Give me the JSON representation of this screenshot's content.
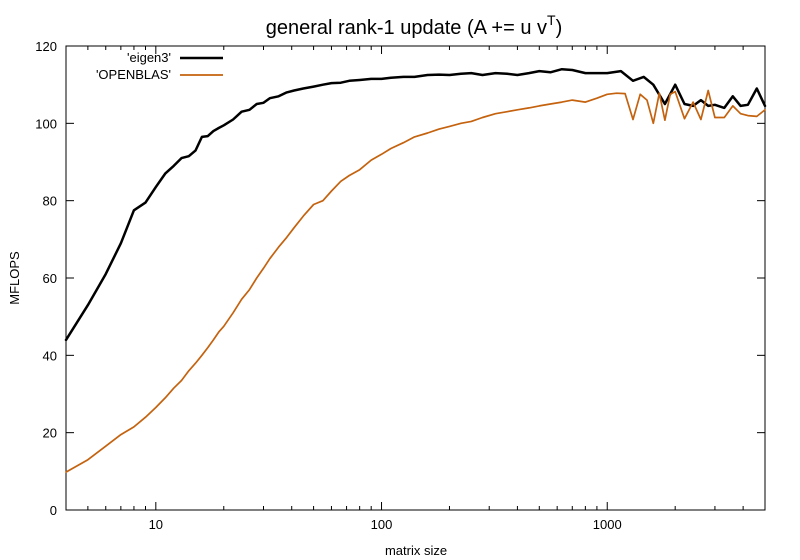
{
  "chart_data": {
    "type": "line",
    "title": "general rank-1 update (A += u v",
    "title_sup": "T",
    "title_close": ")",
    "xlabel": "matrix size",
    "ylabel": "MFLOPS",
    "x_scale": "log",
    "xlim": [
      4,
      5000
    ],
    "ylim": [
      0,
      120
    ],
    "xticks": [
      10,
      100,
      1000
    ],
    "yticks": [
      0,
      20,
      40,
      60,
      80,
      100,
      120
    ],
    "grid": false,
    "legend_position": "top-left",
    "series": [
      {
        "name": "'eigen3'",
        "color": "#000000",
        "x": [
          4,
          5,
          6,
          7,
          8,
          9,
          10,
          11,
          12,
          13,
          14,
          15,
          16,
          17,
          18,
          19,
          20,
          22,
          24,
          26,
          28,
          30,
          32,
          35,
          38,
          41,
          45,
          50,
          55,
          60,
          66,
          72,
          80,
          90,
          100,
          110,
          125,
          140,
          160,
          180,
          200,
          225,
          250,
          280,
          320,
          360,
          400,
          450,
          500,
          560,
          630,
          700,
          800,
          900,
          1000,
          1150,
          1300,
          1450,
          1600,
          1800,
          2000,
          2200,
          2400,
          2600,
          2800,
          3000,
          3300,
          3600,
          3900,
          4200,
          4600,
          5000
        ],
        "y": [
          44,
          53,
          61,
          69,
          77.5,
          79.5,
          83.5,
          87,
          89,
          91,
          91.5,
          93,
          96.5,
          96.7,
          98,
          98.8,
          99.5,
          101,
          103,
          103.5,
          105,
          105.3,
          106.5,
          107,
          108,
          108.5,
          109,
          109.5,
          110,
          110.4,
          110.5,
          111,
          111.2,
          111.5,
          111.5,
          111.8,
          112,
          112,
          112.5,
          112.6,
          112.5,
          112.8,
          113,
          112.5,
          113,
          112.8,
          112.5,
          113,
          113.5,
          113.2,
          114,
          113.8,
          113,
          113,
          113,
          113.5,
          111,
          112,
          110,
          105,
          110,
          105,
          104.5,
          106,
          104.5,
          104.8,
          104,
          107,
          104.5,
          104.8,
          109,
          104.5
        ]
      },
      {
        "name": "'OPENBLAS'",
        "color": "#c4620e",
        "x": [
          4,
          5,
          6,
          7,
          8,
          9,
          10,
          11,
          12,
          13,
          14,
          15,
          16,
          17,
          18,
          19,
          20,
          22,
          24,
          26,
          28,
          30,
          32,
          35,
          38,
          41,
          45,
          50,
          55,
          60,
          66,
          72,
          80,
          90,
          100,
          110,
          125,
          140,
          160,
          180,
          200,
          225,
          250,
          280,
          320,
          360,
          400,
          450,
          500,
          560,
          630,
          700,
          800,
          900,
          1000,
          1100,
          1200,
          1300,
          1400,
          1500,
          1600,
          1700,
          1800,
          1900,
          2000,
          2200,
          2400,
          2600,
          2800,
          3000,
          3300,
          3600,
          3900,
          4200,
          4600,
          5000
        ],
        "y": [
          9.8,
          13,
          16.5,
          19.5,
          21.5,
          24,
          26.5,
          29,
          31.5,
          33.5,
          36,
          38,
          40,
          42,
          44,
          46,
          47.5,
          51,
          54.5,
          57,
          60,
          62.5,
          65,
          68,
          70.5,
          73,
          76,
          79,
          80,
          82.5,
          85,
          86.5,
          88,
          90.5,
          92,
          93.5,
          95,
          96.5,
          97.5,
          98.5,
          99.2,
          100,
          100.5,
          101.5,
          102.5,
          103,
          103.5,
          104,
          104.5,
          105,
          105.5,
          106,
          105.5,
          106.5,
          107.5,
          107.8,
          107.7,
          101,
          107.5,
          106,
          100,
          107.8,
          100.8,
          107.5,
          108.2,
          101.2,
          105.5,
          101,
          108.5,
          101.5,
          101.5,
          104.5,
          102.5,
          102,
          101.8,
          103.5
        ]
      }
    ]
  }
}
